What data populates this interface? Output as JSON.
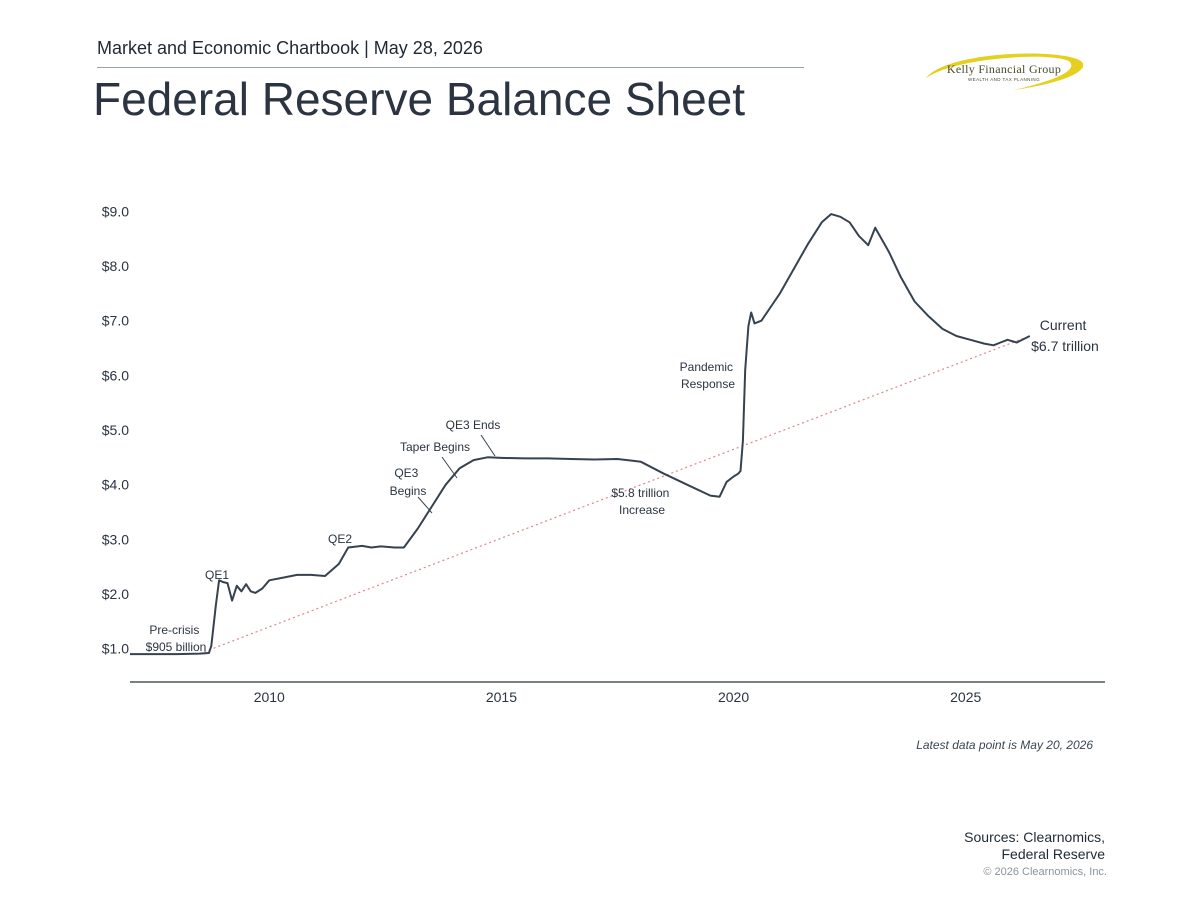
{
  "header": {
    "kicker": "Market and Economic Chartbook | May 28, 2026",
    "title": "Federal Reserve Balance Sheet"
  },
  "logo": {
    "name": "Kelly Financial Group",
    "tagline": "WEALTH AND TAX PLANNING",
    "accent_color": "#e5cf1f"
  },
  "chart_data": {
    "type": "line",
    "title": "",
    "xlabel": "",
    "ylabel": "",
    "xlim": [
      2007.0,
      2028.0
    ],
    "ylim": [
      0.5,
      9.5
    ],
    "x_ticks": [
      2010,
      2015,
      2020,
      2025
    ],
    "x_tick_labels": [
      "2010",
      "2015",
      "2020",
      "2025"
    ],
    "y_ticks": [
      1,
      2,
      3,
      4,
      5,
      6,
      7,
      8,
      9
    ],
    "y_tick_labels": [
      "$1.0",
      "$2.0",
      "$3.0",
      "$4.0",
      "$5.0",
      "$6.0",
      "$7.0",
      "$8.0",
      "$9.0"
    ],
    "grid": false,
    "line_color": "#36424f",
    "series": [
      {
        "name": "",
        "x": [
          2007.0,
          2007.5,
          2008.0,
          2008.5,
          2008.7,
          2008.75,
          2008.85,
          2008.92,
          2009.0,
          2009.1,
          2009.2,
          2009.3,
          2009.4,
          2009.5,
          2009.6,
          2009.7,
          2009.85,
          2010.0,
          2010.3,
          2010.6,
          2010.9,
          2011.2,
          2011.5,
          2011.7,
          2012.0,
          2012.2,
          2012.4,
          2012.7,
          2012.9,
          2013.2,
          2013.5,
          2013.8,
          2014.1,
          2014.4,
          2014.7,
          2015.0,
          2015.5,
          2016.0,
          2016.5,
          2017.0,
          2017.5,
          2018.0,
          2018.5,
          2019.0,
          2019.5,
          2019.7,
          2019.85,
          2020.0,
          2020.1,
          2020.15,
          2020.2,
          2020.25,
          2020.32,
          2020.38,
          2020.45,
          2020.6,
          2020.8,
          2021.0,
          2021.3,
          2021.6,
          2021.9,
          2022.1,
          2022.3,
          2022.5,
          2022.7,
          2022.9,
          2023.05,
          2023.15,
          2023.25,
          2023.35,
          2023.6,
          2023.9,
          2024.2,
          2024.5,
          2024.8,
          2025.1,
          2025.4,
          2025.6,
          2025.75,
          2025.9,
          2026.1,
          2026.38
        ],
        "values": [
          0.9,
          0.9,
          0.9,
          0.91,
          0.92,
          1.05,
          1.8,
          2.25,
          2.22,
          2.2,
          1.88,
          2.15,
          2.05,
          2.18,
          2.05,
          2.02,
          2.1,
          2.25,
          2.3,
          2.35,
          2.35,
          2.33,
          2.55,
          2.85,
          2.88,
          2.85,
          2.87,
          2.85,
          2.85,
          3.2,
          3.6,
          4.0,
          4.3,
          4.45,
          4.5,
          4.49,
          4.48,
          4.48,
          4.47,
          4.46,
          4.47,
          4.42,
          4.2,
          4.0,
          3.8,
          3.78,
          4.05,
          4.15,
          4.2,
          4.25,
          4.8,
          6.1,
          6.9,
          7.15,
          6.95,
          7.0,
          7.25,
          7.5,
          7.95,
          8.4,
          8.8,
          8.95,
          8.9,
          8.8,
          8.55,
          8.38,
          8.7,
          8.55,
          8.4,
          8.25,
          7.8,
          7.35,
          7.08,
          6.85,
          6.72,
          6.65,
          6.58,
          6.55,
          6.6,
          6.65,
          6.6,
          6.72
        ]
      }
    ],
    "trendline": {
      "x": [
        2008.5,
        2026.38
      ],
      "values": [
        0.91,
        6.72
      ],
      "color": "#d9888a",
      "style": "dotted"
    },
    "annotations": [
      {
        "id": "precrisis",
        "lines": [
          "Pre-crisis",
          "$905 billion"
        ]
      },
      {
        "id": "qe1",
        "lines": [
          "QE1"
        ]
      },
      {
        "id": "qe2",
        "lines": [
          "QE2"
        ]
      },
      {
        "id": "qe3",
        "lines": [
          "QE3",
          "Begins"
        ]
      },
      {
        "id": "taper",
        "lines": [
          "Taper Begins"
        ]
      },
      {
        "id": "qe3end",
        "lines": [
          "QE3 Ends"
        ]
      },
      {
        "id": "increase",
        "lines": [
          "$5.8 trillion",
          "Increase"
        ]
      },
      {
        "id": "pandemic",
        "lines": [
          "Pandemic",
          "Response"
        ]
      },
      {
        "id": "current",
        "lines": [
          "Current",
          "$6.7 trillion"
        ]
      }
    ]
  },
  "footer": {
    "note": "Latest data point is May 20, 2026",
    "sources_line1": "Sources: Clearnomics,",
    "sources_line2": "Federal Reserve",
    "copyright": "© 2026 Clearnomics, Inc."
  }
}
